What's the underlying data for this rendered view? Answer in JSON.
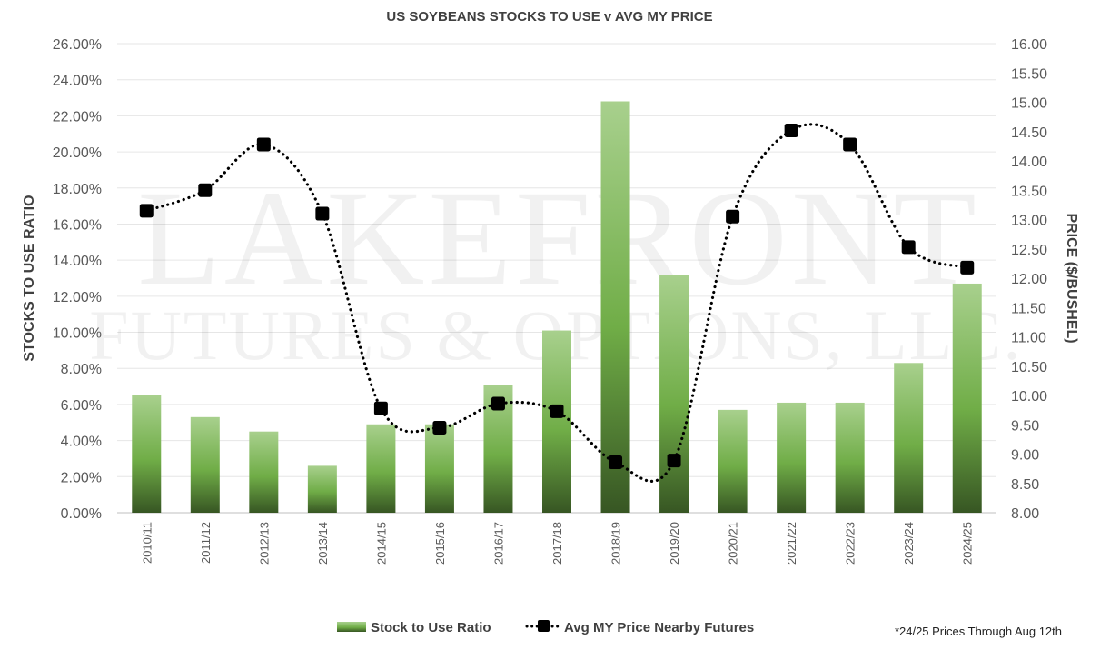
{
  "chart_data": {
    "type": "bar",
    "title": "US SOYBEANS STOCKS TO USE v AVG MY PRICE",
    "categories": [
      "2010/11",
      "2011/12",
      "2012/13",
      "2013/14",
      "2014/15",
      "2015/16",
      "2016/17",
      "2017/18",
      "2018/19",
      "2019/20",
      "2020/21",
      "2021/22",
      "2022/23",
      "2023/24",
      "2024/25"
    ],
    "series": [
      {
        "name": "Stock to Use Ratio",
        "type": "bar",
        "axis": "left",
        "values": [
          6.5,
          5.3,
          4.5,
          2.6,
          4.9,
          4.9,
          7.1,
          10.1,
          22.8,
          13.2,
          5.7,
          6.1,
          6.1,
          8.3,
          12.7
        ],
        "color": "#6aa84f"
      },
      {
        "name": "Avg MY Price Nearby Futures",
        "type": "line",
        "axis": "right",
        "style": "dotted-smooth",
        "marker": "square",
        "values": [
          13.15,
          13.5,
          14.28,
          13.1,
          9.78,
          9.45,
          9.86,
          9.73,
          8.86,
          8.89,
          13.05,
          14.52,
          14.28,
          12.53,
          12.18
        ],
        "color": "#000000"
      }
    ],
    "ylabel": "STOCKS TO USE RATIO",
    "y2label": "PRICE ($/BUSHEL)",
    "ylim": [
      0,
      26
    ],
    "ystep": 2,
    "y_tick_labels": [
      "0.00%",
      "2.00%",
      "4.00%",
      "6.00%",
      "8.00%",
      "10.00%",
      "12.00%",
      "14.00%",
      "16.00%",
      "18.00%",
      "20.00%",
      "22.00%",
      "24.00%",
      "26.00%"
    ],
    "y2lim": [
      8,
      16
    ],
    "y2step": 0.5,
    "y2_tick_labels": [
      "8.00",
      "8.50",
      "9.00",
      "9.50",
      "10.00",
      "10.50",
      "11.00",
      "11.50",
      "12.00",
      "12.50",
      "13.00",
      "13.50",
      "14.00",
      "14.50",
      "15.00",
      "15.50",
      "16.00"
    ],
    "grid": true,
    "legend": "bottom-center",
    "annotations": [
      "*24/25 Prices Through Aug 12th"
    ]
  },
  "watermark": {
    "line1": "LAKEFRONT",
    "line2": "FUTURES & OPTIONS, LLC."
  }
}
